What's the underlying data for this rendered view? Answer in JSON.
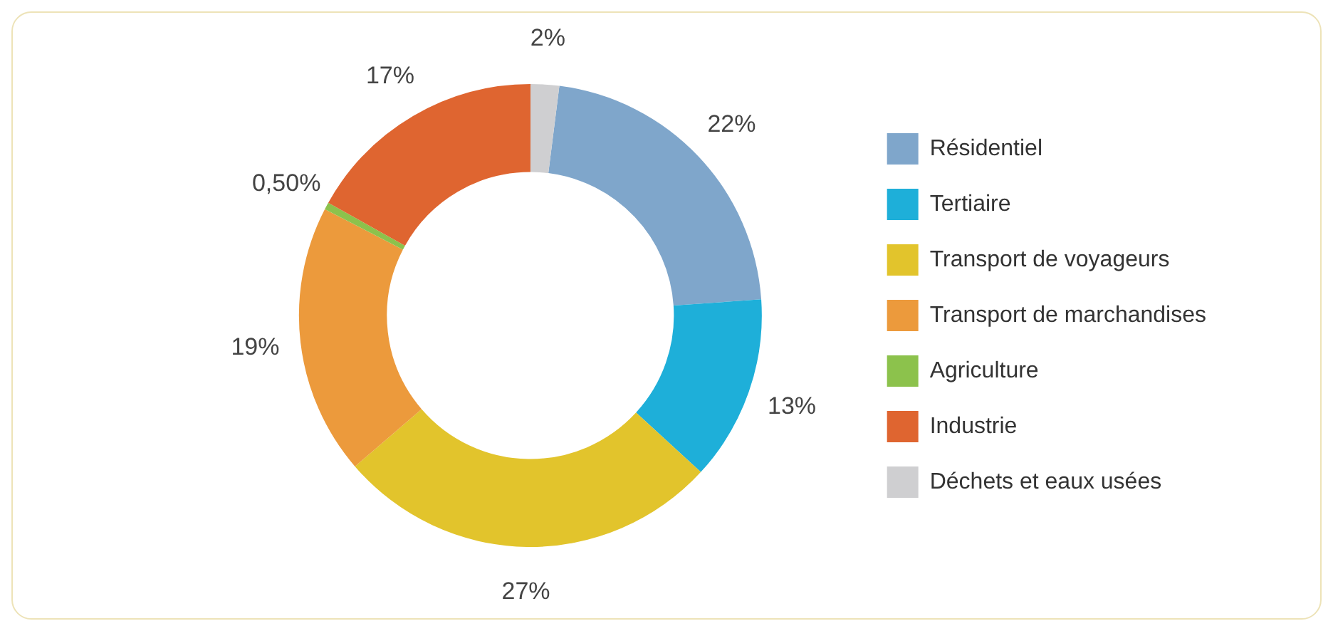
{
  "chart_data": {
    "type": "donut",
    "categories": [
      "Résidentiel",
      "Tertiaire",
      "Transport de voyageurs",
      "Transport de marchandises",
      "Agriculture",
      "Industrie",
      "Déchets et eaux usées"
    ],
    "values": [
      22,
      13,
      27,
      19,
      0.5,
      17,
      2
    ],
    "value_labels": [
      "22%",
      "13%",
      "27%",
      "19%",
      "0,50%",
      "17%",
      "2%"
    ],
    "colors": [
      "#7fa6cb",
      "#1eafd9",
      "#e2c42c",
      "#ec9a3c",
      "#8cc24c",
      "#df6530",
      "#cfcfd1"
    ],
    "legend": "right"
  }
}
